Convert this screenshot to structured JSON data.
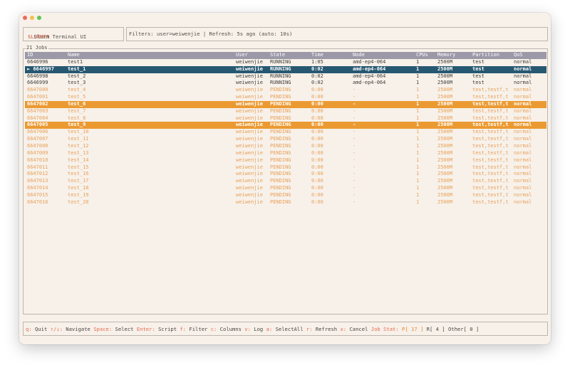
{
  "app": {
    "name": "SLURMER",
    "subtitle": " - Slurm Terminal UI"
  },
  "filters": {
    "text": "Filters: user=weiwenjie | Refresh: 5s ago (auto: 10s)"
  },
  "jobs_panel": {
    "title": "21 Jobs",
    "columns": [
      "ID",
      "Name",
      "User",
      "State",
      "Time",
      "Node",
      "CPUs",
      "Memory",
      "Partition",
      "QoS"
    ],
    "rows": [
      {
        "marker": "",
        "id": "6646996",
        "name": "test1",
        "user": "weiwenjie",
        "state": "RUNNING",
        "time": "1:05",
        "node": "amd-ep4-064",
        "cpus": "1",
        "memory": "2500M",
        "partition": "test",
        "qos": "normal",
        "style": "running"
      },
      {
        "marker": "► ",
        "id": "6646997",
        "name": "test_1",
        "user": "weiwenjie",
        "state": "RUNNING",
        "time": "0:02",
        "node": "amd-ep4-064",
        "cpus": "1",
        "memory": "2500M",
        "partition": "test",
        "qos": "normal",
        "style": "cursor"
      },
      {
        "marker": "",
        "id": "6646998",
        "name": "test_2",
        "user": "weiwenjie",
        "state": "RUNNING",
        "time": "0:02",
        "node": "amd-ep4-064",
        "cpus": "1",
        "memory": "2500M",
        "partition": "test",
        "qos": "normal",
        "style": "running"
      },
      {
        "marker": "",
        "id": "6646999",
        "name": "test_3",
        "user": "weiwenjie",
        "state": "RUNNING",
        "time": "0:02",
        "node": "amd-ep4-064",
        "cpus": "1",
        "memory": "2500M",
        "partition": "test",
        "qos": "normal",
        "style": "running"
      },
      {
        "marker": "",
        "id": "6647000",
        "name": "test_4",
        "user": "weiwenjie",
        "state": "PENDING",
        "time": "0:00",
        "node": "-",
        "cpus": "1",
        "memory": "2500M",
        "partition": "test,testf,t",
        "qos": "normal",
        "style": "pending"
      },
      {
        "marker": "",
        "id": "6647001",
        "name": "test_5",
        "user": "weiwenjie",
        "state": "PENDING",
        "time": "0:00",
        "node": "-",
        "cpus": "1",
        "memory": "2500M",
        "partition": "test,testf,t",
        "qos": "normal",
        "style": "pending"
      },
      {
        "marker": "",
        "id": "6647002",
        "name": "test_6",
        "user": "weiwenjie",
        "state": "PENDING",
        "time": "0:00",
        "node": "-",
        "cpus": "1",
        "memory": "2500M",
        "partition": "test,testf,t",
        "qos": "normal",
        "style": "selected"
      },
      {
        "marker": "",
        "id": "6647003",
        "name": "test_7",
        "user": "weiwenjie",
        "state": "PENDING",
        "time": "0:00",
        "node": "-",
        "cpus": "1",
        "memory": "2500M",
        "partition": "test,testf,t",
        "qos": "normal",
        "style": "pending"
      },
      {
        "marker": "",
        "id": "6647004",
        "name": "test_8",
        "user": "weiwenjie",
        "state": "PENDING",
        "time": "0:00",
        "node": "-",
        "cpus": "1",
        "memory": "2500M",
        "partition": "test,testf,t",
        "qos": "normal",
        "style": "pending"
      },
      {
        "marker": "",
        "id": "6647005",
        "name": "test_9",
        "user": "weiwenjie",
        "state": "PENDING",
        "time": "0:00",
        "node": "-",
        "cpus": "1",
        "memory": "2500M",
        "partition": "test,testf,t",
        "qos": "normal",
        "style": "selected"
      },
      {
        "marker": "",
        "id": "6647006",
        "name": "test_10",
        "user": "weiwenjie",
        "state": "PENDING",
        "time": "0:00",
        "node": "-",
        "cpus": "1",
        "memory": "2500M",
        "partition": "test,testf,t",
        "qos": "normal",
        "style": "pending"
      },
      {
        "marker": "",
        "id": "6647007",
        "name": "test_11",
        "user": "weiwenjie",
        "state": "PENDING",
        "time": "0:00",
        "node": "-",
        "cpus": "1",
        "memory": "2500M",
        "partition": "test,testf,t",
        "qos": "normal",
        "style": "pending"
      },
      {
        "marker": "",
        "id": "6647008",
        "name": "test_12",
        "user": "weiwenjie",
        "state": "PENDING",
        "time": "0:00",
        "node": "-",
        "cpus": "1",
        "memory": "2500M",
        "partition": "test,testf,t",
        "qos": "normal",
        "style": "pending"
      },
      {
        "marker": "",
        "id": "6647009",
        "name": "test_13",
        "user": "weiwenjie",
        "state": "PENDING",
        "time": "0:00",
        "node": "-",
        "cpus": "1",
        "memory": "2500M",
        "partition": "test,testf,t",
        "qos": "normal",
        "style": "pending"
      },
      {
        "marker": "",
        "id": "6647010",
        "name": "test_14",
        "user": "weiwenjie",
        "state": "PENDING",
        "time": "0:00",
        "node": "-",
        "cpus": "1",
        "memory": "2500M",
        "partition": "test,testf,t",
        "qos": "normal",
        "style": "pending"
      },
      {
        "marker": "",
        "id": "6647011",
        "name": "test_15",
        "user": "weiwenjie",
        "state": "PENDING",
        "time": "0:00",
        "node": "-",
        "cpus": "1",
        "memory": "2500M",
        "partition": "test,testf,t",
        "qos": "normal",
        "style": "pending"
      },
      {
        "marker": "",
        "id": "6647012",
        "name": "test_16",
        "user": "weiwenjie",
        "state": "PENDING",
        "time": "0:00",
        "node": "-",
        "cpus": "1",
        "memory": "2500M",
        "partition": "test,testf,t",
        "qos": "normal",
        "style": "pending"
      },
      {
        "marker": "",
        "id": "6647013",
        "name": "test_17",
        "user": "weiwenjie",
        "state": "PENDING",
        "time": "0:00",
        "node": "-",
        "cpus": "1",
        "memory": "2500M",
        "partition": "test,testf,t",
        "qos": "normal",
        "style": "pending"
      },
      {
        "marker": "",
        "id": "6647014",
        "name": "test_18",
        "user": "weiwenjie",
        "state": "PENDING",
        "time": "0:00",
        "node": "-",
        "cpus": "1",
        "memory": "2500M",
        "partition": "test,testf,t",
        "qos": "normal",
        "style": "pending"
      },
      {
        "marker": "",
        "id": "6647015",
        "name": "test_19",
        "user": "weiwenjie",
        "state": "PENDING",
        "time": "0:00",
        "node": "-",
        "cpus": "1",
        "memory": "2500M",
        "partition": "test,testf,t",
        "qos": "normal",
        "style": "pending"
      },
      {
        "marker": "",
        "id": "6647016",
        "name": "test_20",
        "user": "weiwenjie",
        "state": "PENDING",
        "time": "0:00",
        "node": "-",
        "cpus": "1",
        "memory": "2500M",
        "partition": "test,testf,t",
        "qos": "normal",
        "style": "pending"
      }
    ]
  },
  "statusbar": {
    "quit_key": "q:",
    "quit_label": " Quit ",
    "nav_key": "↑/↓:",
    "nav_label": " Navigate ",
    "space_key": "Space:",
    "space_label": " Select ",
    "enter_key": "Enter:",
    "enter_label": " Script ",
    "f_key": "f:",
    "f_label": " Filter ",
    "c_key": "c:",
    "c_label": " Columns ",
    "v_key": "v:",
    "v_label": " Log ",
    "a_key": "a:",
    "a_label": " SelectAll ",
    "r_key": "r:",
    "r_label": " Refresh ",
    "x_key": "x:",
    "x_label": " Cancel ",
    "stat_label": "Job Stat:",
    "stat_p": " P[ 17 ]",
    "stat_r": " R[ 4 ]",
    "stat_other": " Other[ 0 ]"
  },
  "colors": {
    "header_bg": "#9b98a7",
    "cursor_row": "#275871",
    "selected_row": "#eb9a32",
    "pending_text": "#e9a15b",
    "accent_key": "#e86a50"
  }
}
